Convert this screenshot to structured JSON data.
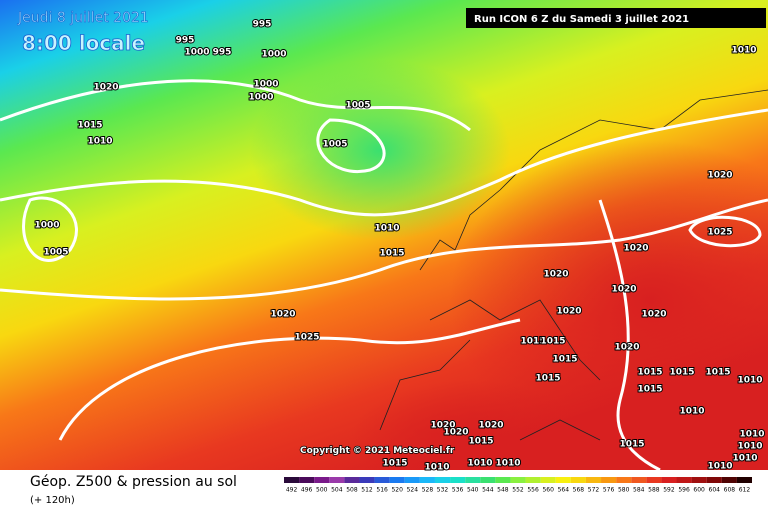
{
  "header": {
    "date": "Jeudi 8 juillet 2021",
    "time": "8:00 locale",
    "run": "Run ICON 6 Z du Samedi 3 juillet 2021",
    "copyright": "Copyright © 2021 Meteociel.fr"
  },
  "footer": {
    "title": "Géop. Z500 & pression au sol",
    "lead": "(+ 120h)"
  },
  "isobar_labels": [
    995,
    995,
    1000,
    995,
    1000,
    1020,
    1000,
    1000,
    1005,
    1015,
    1010,
    1005,
    1010,
    1020,
    1000,
    1005,
    1010,
    1015,
    1025,
    1020,
    1020,
    1020,
    1020,
    1025,
    1020,
    1020,
    1015,
    1015,
    1015,
    1020,
    1015,
    1015,
    1015,
    1015,
    1010,
    1015,
    1010,
    1020,
    1020,
    1020,
    1015,
    1015,
    1010,
    1010,
    1015,
    1010,
    1010,
    1010,
    1010,
    1010
  ],
  "colorbar": {
    "values": [
      492,
      496,
      500,
      504,
      508,
      512,
      516,
      520,
      524,
      528,
      532,
      536,
      540,
      544,
      548,
      552,
      556,
      560,
      564,
      568,
      572,
      576,
      580,
      584,
      588,
      592,
      596,
      600,
      604,
      608,
      612
    ],
    "colors": [
      "#2a0a3a",
      "#4a0a5a",
      "#7a1a8a",
      "#9a3aaa",
      "#5a2a9a",
      "#3a3aba",
      "#2a5ad8",
      "#1a7af0",
      "#1a9af8",
      "#1ab8f8",
      "#1ad0e8",
      "#1ae0c8",
      "#2ae0a0",
      "#3ae070",
      "#5ae850",
      "#8af040",
      "#b0f030",
      "#d8f020",
      "#f8f010",
      "#f8d810",
      "#f8b810",
      "#f89810",
      "#f87818",
      "#f05820",
      "#e83820",
      "#d82020",
      "#c01818",
      "#a01010",
      "#800808",
      "#500404",
      "#200000"
    ]
  }
}
